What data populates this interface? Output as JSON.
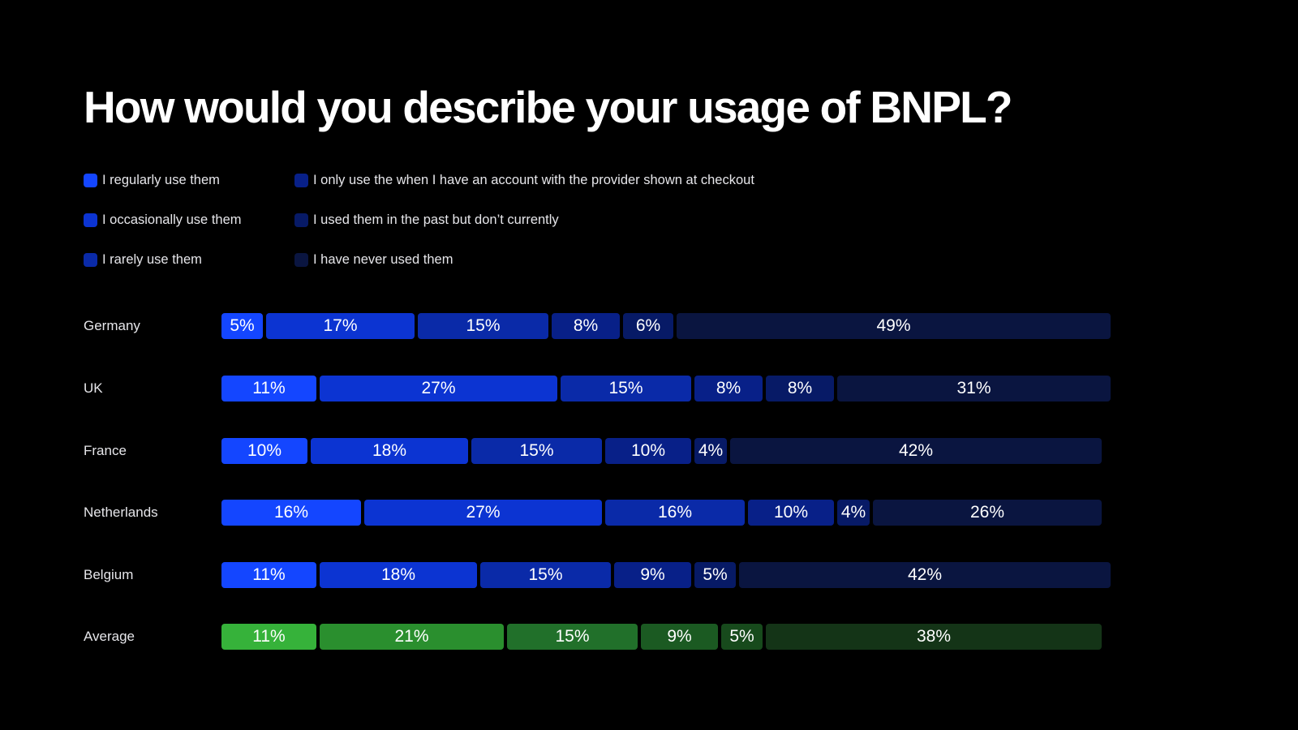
{
  "title": "How would you describe your usage of BNPL?",
  "legend": {
    "items": [
      {
        "label": "I regularly use them",
        "color": "#1446ff"
      },
      {
        "label": "I occasionally use them",
        "color": "#0c34d2"
      },
      {
        "label": "I rarely use them",
        "color": "#0a2aa8"
      },
      {
        "label": "I only use the when I have an account with the provider shown at checkout",
        "color": "#082088"
      },
      {
        "label": "I used them in the past but don’t currently",
        "color": "#071a66"
      },
      {
        "label": "I have never used them",
        "color": "#0a1540"
      }
    ]
  },
  "chart_data": {
    "type": "bar",
    "orientation": "horizontal",
    "stacked": true,
    "title": "How would you describe your usage of BNPL?",
    "categories": [
      "Germany",
      "UK",
      "France",
      "Netherlands",
      "Belgium",
      "Average"
    ],
    "series": [
      {
        "name": "I regularly use them",
        "values": [
          5,
          11,
          10,
          16,
          11,
          11
        ],
        "labels": [
          "5%",
          "11%",
          "10%",
          "16%",
          "11%",
          "11%"
        ]
      },
      {
        "name": "I occasionally use them",
        "values": [
          17,
          27,
          18,
          27,
          18,
          21
        ],
        "labels": [
          "17%",
          "27%",
          "18%",
          "27%",
          "18%",
          "21%"
        ]
      },
      {
        "name": "I rarely use them",
        "values": [
          15,
          15,
          15,
          16,
          15,
          15
        ],
        "labels": [
          "15%",
          "15%",
          "15%",
          "16%",
          "15%",
          "15%"
        ]
      },
      {
        "name": "I only use the when I have an account with the provider shown at checkout",
        "values": [
          8,
          8,
          10,
          10,
          9,
          9
        ],
        "labels": [
          "8%",
          "8%",
          "10%",
          "10%",
          "9%",
          "9%"
        ]
      },
      {
        "name": "I used them in the past but don’t currently",
        "values": [
          6,
          8,
          4,
          4,
          5,
          5
        ],
        "labels": [
          "6%",
          "8%",
          "4%",
          "4%",
          "5%",
          "5%"
        ]
      },
      {
        "name": "I have never used them",
        "values": [
          49,
          31,
          42,
          26,
          42,
          38
        ],
        "labels": [
          "49%",
          "31%",
          "42%",
          "26%",
          "42%",
          "38%"
        ]
      }
    ],
    "colors": {
      "country": [
        "#1446ff",
        "#0c34d2",
        "#0a2aa8",
        "#082088",
        "#071a66",
        "#0a1540"
      ],
      "average": [
        "#36b23a",
        "#2a8f2e",
        "#21702a",
        "#1b5a22",
        "#174a1c",
        "#143417"
      ]
    },
    "xlim": [
      0,
      100
    ],
    "legend_position": "top-left"
  }
}
